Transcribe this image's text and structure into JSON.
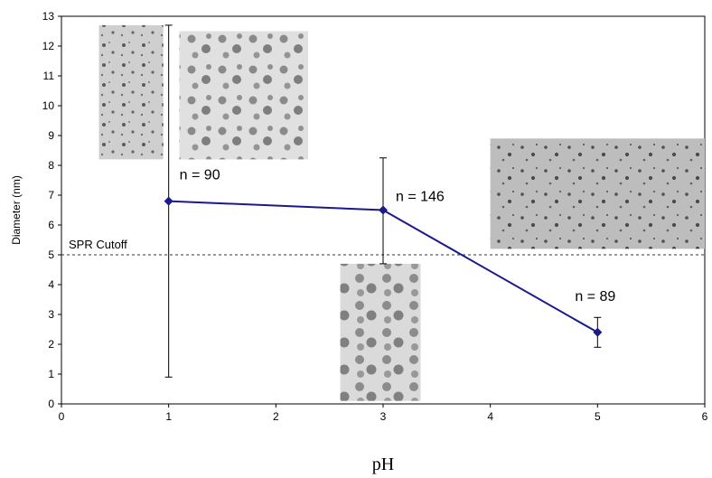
{
  "chart_data": {
    "type": "line",
    "xlabel": "pH",
    "ylabel": "Diameter (nm)",
    "xlim": [
      0,
      6
    ],
    "ylim": [
      0,
      13
    ],
    "xticks": [
      "0",
      "1",
      "2",
      "3",
      "4",
      "5",
      "6"
    ],
    "yticks": [
      "0",
      "1",
      "2",
      "3",
      "4",
      "5",
      "6",
      "7",
      "8",
      "9",
      "10",
      "11",
      "12",
      "13"
    ],
    "grid": false,
    "series_color": "#1a1a8c",
    "series": [
      {
        "x": [
          1,
          3,
          5
        ],
        "y": [
          6.8,
          6.5,
          2.4
        ],
        "error_low": [
          0.9,
          4.7,
          1.9
        ],
        "error_high": [
          12.7,
          8.25,
          2.9
        ]
      }
    ],
    "annotations": [
      {
        "text": "n = 90",
        "x": 1,
        "y": 6.8
      },
      {
        "text": "n = 146",
        "x": 3,
        "y": 6.5
      },
      {
        "text": "n = 89",
        "x": 5,
        "y": 2.4
      }
    ],
    "reference_line": {
      "label": "SPR Cutoff",
      "y": 5,
      "style": "dashed"
    },
    "images": [
      {
        "name": "tem-image-small-left",
        "x": [
          0.35,
          0.95
        ],
        "y": [
          8.2,
          12.7
        ]
      },
      {
        "name": "tem-image-ph1",
        "x": [
          1.1,
          2.3
        ],
        "y": [
          8.2,
          12.5
        ]
      },
      {
        "name": "tem-image-ph3",
        "x": [
          2.6,
          3.35
        ],
        "y": [
          0.1,
          4.7
        ]
      },
      {
        "name": "tem-image-ph5",
        "x": [
          4.0,
          6.0
        ],
        "y": [
          5.2,
          8.9
        ]
      }
    ]
  }
}
